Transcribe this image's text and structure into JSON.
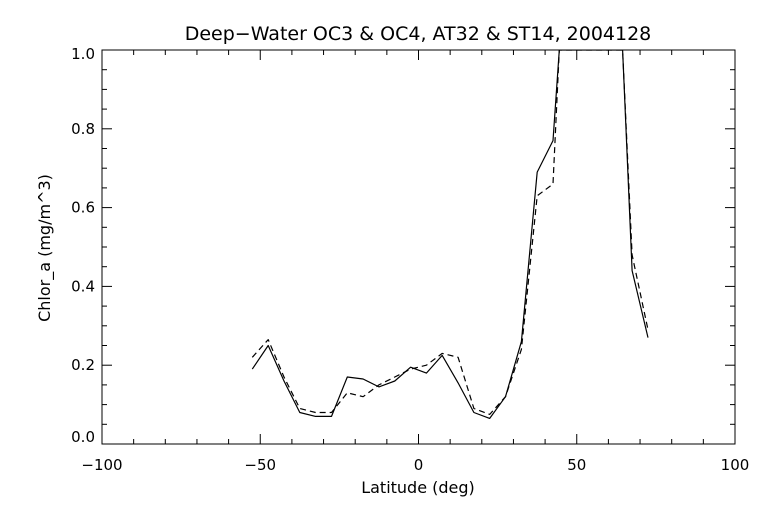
{
  "chart_data": {
    "type": "line",
    "title": "Deep−Water OC3 & OC4, AT32 & ST14, 2004128",
    "xlabel": "Latitude (deg)",
    "ylabel": "Chlor_a (mg/m^3)",
    "xlim": [
      -100,
      100
    ],
    "ylim": [
      0.0,
      1.0
    ],
    "xticks": [
      -100,
      -50,
      0,
      50,
      100
    ],
    "xtick_labels": [
      "−100",
      "−50",
      "0",
      "50",
      "100"
    ],
    "yticks": [
      0.0,
      0.2,
      0.4,
      0.6,
      0.8,
      1.0
    ],
    "ytick_labels": [
      "0.0",
      "0.2",
      "0.4",
      "0.6",
      "0.8",
      "1.0"
    ],
    "grid": false,
    "legend": "none",
    "series": [
      {
        "style": "solid",
        "color": "#000000",
        "x": [
          -52.5,
          -47.5,
          -42.5,
          -37.5,
          -32.5,
          -27.5,
          -22.5,
          -17.5,
          -12.5,
          -7.5,
          -2.5,
          2.5,
          7.5,
          12.5,
          17.5,
          22.5,
          27.5,
          32.5,
          37.5,
          42.5,
          44.5,
          64.5,
          67.5,
          72.5
        ],
        "y": [
          0.19,
          0.25,
          0.16,
          0.08,
          0.07,
          0.07,
          0.17,
          0.165,
          0.145,
          0.16,
          0.195,
          0.18,
          0.225,
          0.155,
          0.08,
          0.065,
          0.12,
          0.26,
          0.69,
          0.77,
          1.0,
          1.0,
          0.44,
          0.27
        ]
      },
      {
        "style": "dashed",
        "color": "#000000",
        "x": [
          -52.5,
          -47.5,
          -42.5,
          -37.5,
          -32.5,
          -27.5,
          -22.5,
          -17.5,
          -12.5,
          -7.5,
          -2.5,
          2.5,
          7.5,
          12.5,
          17.5,
          22.5,
          27.5,
          32.5,
          37.5,
          42.5,
          44.5,
          64.5,
          67.5,
          72.5
        ],
        "y": [
          0.22,
          0.265,
          0.17,
          0.09,
          0.08,
          0.08,
          0.13,
          0.12,
          0.15,
          0.17,
          0.19,
          0.2,
          0.23,
          0.22,
          0.09,
          0.075,
          0.12,
          0.24,
          0.63,
          0.66,
          1.0,
          1.0,
          0.48,
          0.29
        ]
      }
    ]
  }
}
